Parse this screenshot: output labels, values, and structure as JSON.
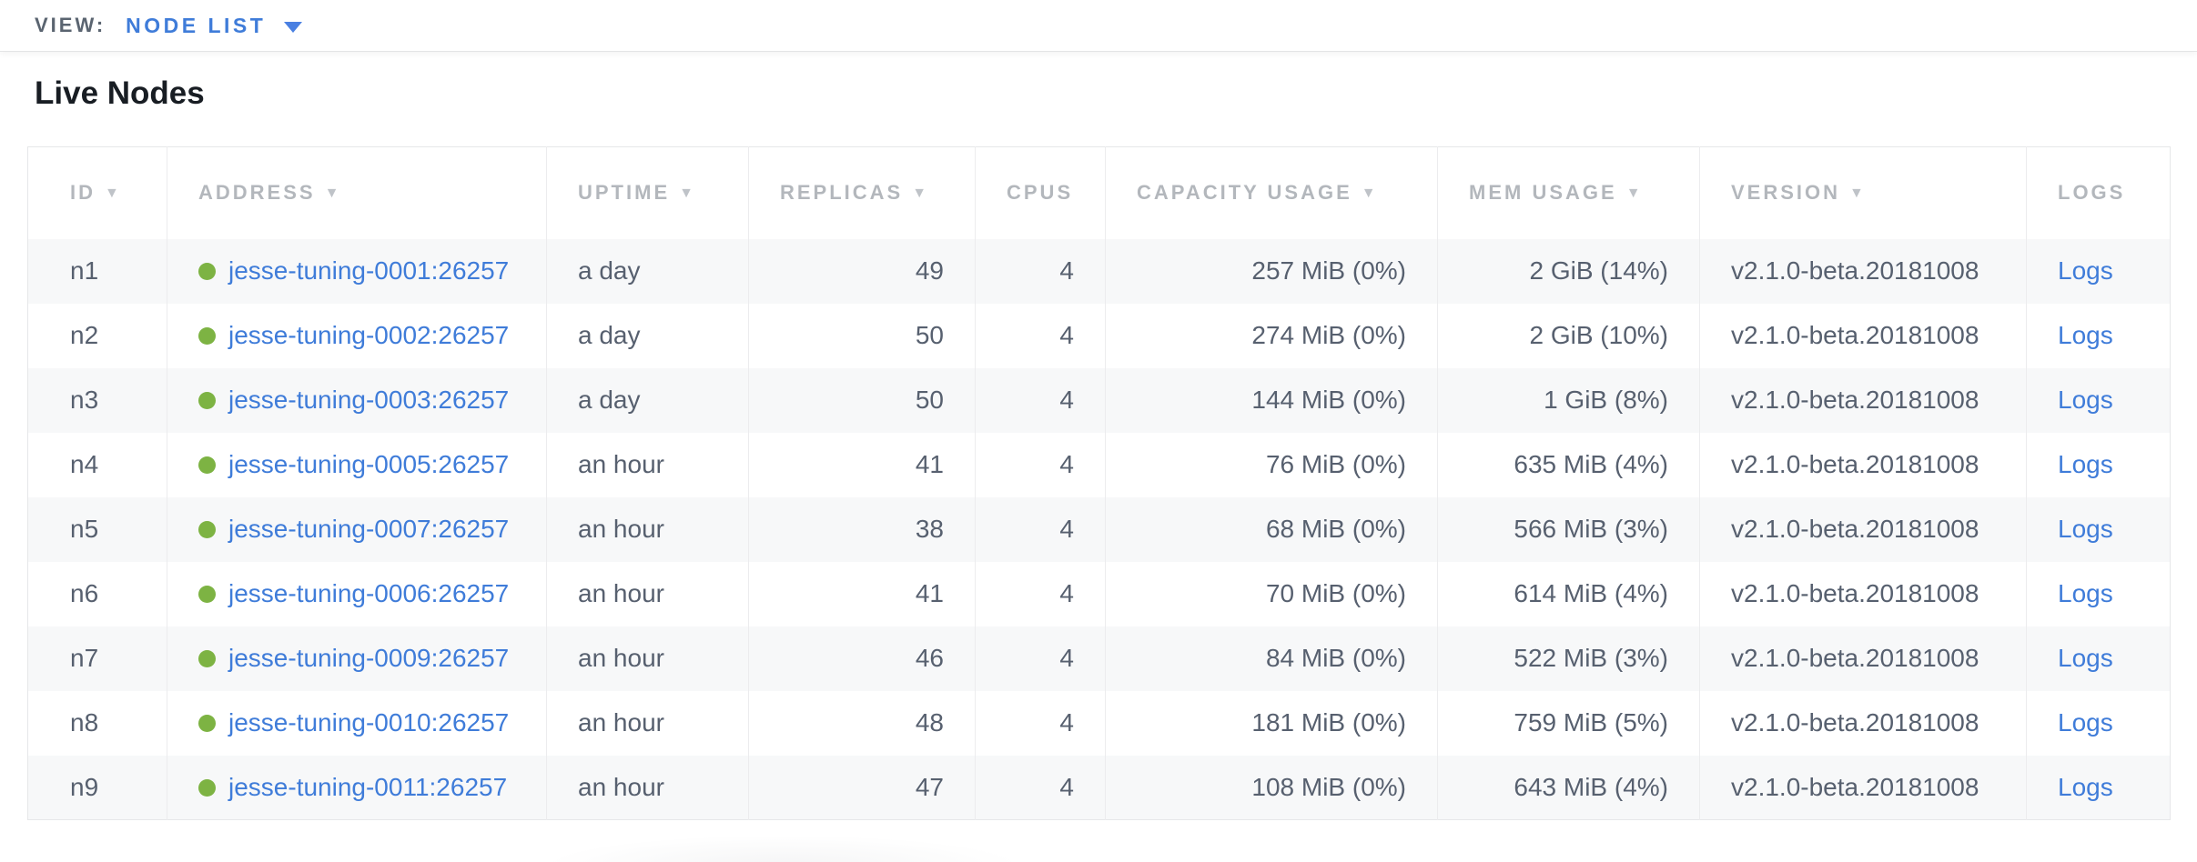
{
  "view_bar": {
    "label": "VIEW:",
    "selected": "NODE LIST"
  },
  "page": {
    "title": "Live Nodes"
  },
  "table": {
    "columns": [
      {
        "key": "id",
        "label": "ID",
        "sortable": true,
        "align": "left"
      },
      {
        "key": "address",
        "label": "ADDRESS",
        "sortable": true,
        "align": "left"
      },
      {
        "key": "uptime",
        "label": "UPTIME",
        "sortable": true,
        "align": "left"
      },
      {
        "key": "replicas",
        "label": "REPLICAS",
        "sortable": true,
        "align": "right"
      },
      {
        "key": "cpus",
        "label": "CPUS",
        "sortable": false,
        "align": "right"
      },
      {
        "key": "capacity",
        "label": "CAPACITY USAGE",
        "sortable": true,
        "align": "right"
      },
      {
        "key": "mem",
        "label": "MEM USAGE",
        "sortable": true,
        "align": "right"
      },
      {
        "key": "version",
        "label": "VERSION",
        "sortable": true,
        "align": "left"
      },
      {
        "key": "logs",
        "label": "LOGS",
        "sortable": false,
        "align": "left"
      }
    ],
    "rows": [
      {
        "id": "n1",
        "address": "jesse-tuning-0001:26257",
        "uptime": "a day",
        "replicas": "49",
        "cpus": "4",
        "capacity": "257 MiB (0%)",
        "mem": "2 GiB (14%)",
        "version": "v2.1.0-beta.20181008",
        "logs": "Logs"
      },
      {
        "id": "n2",
        "address": "jesse-tuning-0002:26257",
        "uptime": "a day",
        "replicas": "50",
        "cpus": "4",
        "capacity": "274 MiB (0%)",
        "mem": "2 GiB (10%)",
        "version": "v2.1.0-beta.20181008",
        "logs": "Logs"
      },
      {
        "id": "n3",
        "address": "jesse-tuning-0003:26257",
        "uptime": "a day",
        "replicas": "50",
        "cpus": "4",
        "capacity": "144 MiB (0%)",
        "mem": "1 GiB (8%)",
        "version": "v2.1.0-beta.20181008",
        "logs": "Logs"
      },
      {
        "id": "n4",
        "address": "jesse-tuning-0005:26257",
        "uptime": "an hour",
        "replicas": "41",
        "cpus": "4",
        "capacity": "76 MiB (0%)",
        "mem": "635 MiB (4%)",
        "version": "v2.1.0-beta.20181008",
        "logs": "Logs"
      },
      {
        "id": "n5",
        "address": "jesse-tuning-0007:26257",
        "uptime": "an hour",
        "replicas": "38",
        "cpus": "4",
        "capacity": "68 MiB (0%)",
        "mem": "566 MiB (3%)",
        "version": "v2.1.0-beta.20181008",
        "logs": "Logs"
      },
      {
        "id": "n6",
        "address": "jesse-tuning-0006:26257",
        "uptime": "an hour",
        "replicas": "41",
        "cpus": "4",
        "capacity": "70 MiB (0%)",
        "mem": "614 MiB (4%)",
        "version": "v2.1.0-beta.20181008",
        "logs": "Logs"
      },
      {
        "id": "n7",
        "address": "jesse-tuning-0009:26257",
        "uptime": "an hour",
        "replicas": "46",
        "cpus": "4",
        "capacity": "84 MiB (0%)",
        "mem": "522 MiB (3%)",
        "version": "v2.1.0-beta.20181008",
        "logs": "Logs"
      },
      {
        "id": "n8",
        "address": "jesse-tuning-0010:26257",
        "uptime": "an hour",
        "replicas": "48",
        "cpus": "4",
        "capacity": "181 MiB (0%)",
        "mem": "759 MiB (5%)",
        "version": "v2.1.0-beta.20181008",
        "logs": "Logs"
      },
      {
        "id": "n9",
        "address": "jesse-tuning-0011:26257",
        "uptime": "an hour",
        "replicas": "47",
        "cpus": "4",
        "capacity": "108 MiB (0%)",
        "mem": "643 MiB (4%)",
        "version": "v2.1.0-beta.20181008",
        "logs": "Logs"
      }
    ],
    "sort_arrow_glyph": "▼"
  },
  "icons": {
    "dropdown_caret": "caret-down",
    "node_status_dot": "green-dot"
  },
  "colors": {
    "link_blue": "#3f7cd9",
    "accent_blue": "#4a80e2",
    "status_green": "#7db343",
    "header_gray": "#b3b7bc",
    "text_slate": "#57606f",
    "row_stripe": "#f7f8f9"
  }
}
